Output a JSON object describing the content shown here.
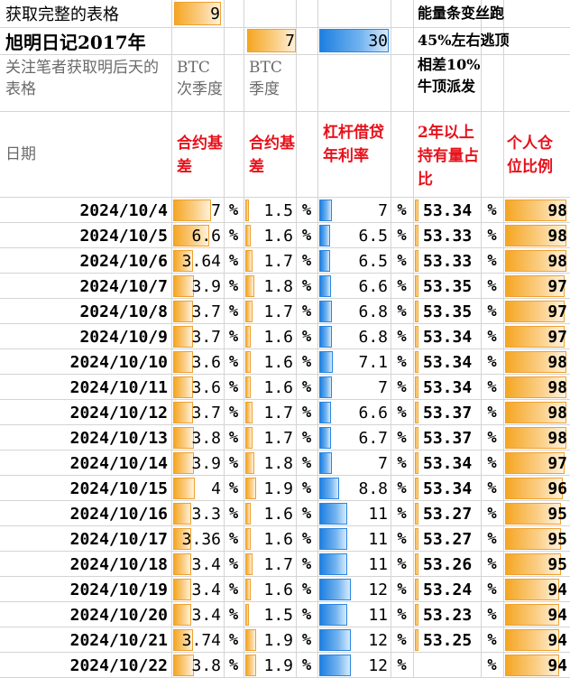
{
  "header": {
    "r1_title": "获取完整的表格",
    "r1_value": "9",
    "r1_right": "能量条变丝跑",
    "r2_title": "旭明日记2017年",
    "r2_value_a": "7",
    "r2_value_b": "30",
    "r2_right": "45%左右逃顶",
    "r3_note": "关注笔者获取明后天的表格",
    "r3_btc_next": "BTC次季度",
    "r3_btc_q": "BTC季度",
    "r3_right": "相差10%牛顶派发"
  },
  "columns": {
    "date": "日期",
    "basis1": "合约基差",
    "basis2": "合约基差",
    "leverage": "杠杆借贷年利率",
    "holders": "2年以上持有量占比",
    "position": "个人仓位比例"
  },
  "colors": {
    "red_header": "#e8101a",
    "orange_bar": "#f5a623",
    "blue_bar": "#1e7fe0"
  },
  "rows": [
    {
      "date": "2024/10/4",
      "basis1": "7",
      "basis2": "1.5",
      "leverage": "7",
      "holders": "53.34",
      "position": "98"
    },
    {
      "date": "2024/10/5",
      "basis1": "6.6",
      "basis2": "1.6",
      "leverage": "6.5",
      "holders": "53.33",
      "position": "98"
    },
    {
      "date": "2024/10/6",
      "basis1": "3.64",
      "basis2": "1.7",
      "leverage": "6.5",
      "holders": "53.33",
      "position": "98"
    },
    {
      "date": "2024/10/7",
      "basis1": "3.9",
      "basis2": "1.8",
      "leverage": "6.6",
      "holders": "53.35",
      "position": "97"
    },
    {
      "date": "2024/10/8",
      "basis1": "3.7",
      "basis2": "1.7",
      "leverage": "6.8",
      "holders": "53.35",
      "position": "97"
    },
    {
      "date": "2024/10/9",
      "basis1": "3.7",
      "basis2": "1.6",
      "leverage": "6.8",
      "holders": "53.34",
      "position": "97"
    },
    {
      "date": "2024/10/10",
      "basis1": "3.6",
      "basis2": "1.6",
      "leverage": "7.1",
      "holders": "53.34",
      "position": "98"
    },
    {
      "date": "2024/10/11",
      "basis1": "3.6",
      "basis2": "1.6",
      "leverage": "7",
      "holders": "53.34",
      "position": "98"
    },
    {
      "date": "2024/10/12",
      "basis1": "3.7",
      "basis2": "1.7",
      "leverage": "6.6",
      "holders": "53.37",
      "position": "98"
    },
    {
      "date": "2024/10/13",
      "basis1": "3.8",
      "basis2": "1.7",
      "leverage": "6.7",
      "holders": "53.37",
      "position": "98"
    },
    {
      "date": "2024/10/14",
      "basis1": "3.9",
      "basis2": "1.8",
      "leverage": "7",
      "holders": "53.34",
      "position": "97"
    },
    {
      "date": "2024/10/15",
      "basis1": "4",
      "basis2": "1.9",
      "leverage": "8.8",
      "holders": "53.34",
      "position": "96"
    },
    {
      "date": "2024/10/16",
      "basis1": "3.3",
      "basis2": "1.6",
      "leverage": "11",
      "holders": "53.27",
      "position": "95"
    },
    {
      "date": "2024/10/17",
      "basis1": "3.36",
      "basis2": "1.6",
      "leverage": "11",
      "holders": "53.27",
      "position": "95"
    },
    {
      "date": "2024/10/18",
      "basis1": "3.4",
      "basis2": "1.7",
      "leverage": "11",
      "holders": "53.26",
      "position": "95"
    },
    {
      "date": "2024/10/19",
      "basis1": "3.4",
      "basis2": "1.6",
      "leverage": "12",
      "holders": "53.24",
      "position": "94"
    },
    {
      "date": "2024/10/20",
      "basis1": "3.4",
      "basis2": "1.5",
      "leverage": "11",
      "holders": "53.23",
      "position": "94"
    },
    {
      "date": "2024/10/21",
      "basis1": "3.74",
      "basis2": "1.9",
      "leverage": "12",
      "holders": "53.25",
      "position": "94"
    },
    {
      "date": "2024/10/22",
      "basis1": "3.8",
      "basis2": "1.9",
      "leverage": "12",
      "holders": "",
      "position": "94"
    }
  ],
  "pct_symbol": "%"
}
